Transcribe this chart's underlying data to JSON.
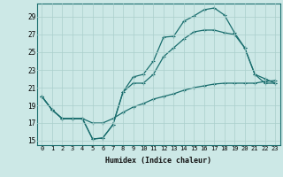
{
  "xlabel": "Humidex (Indice chaleur)",
  "bg_color": "#cce8e6",
  "grid_color": "#aacfcc",
  "line_color": "#1a6e6e",
  "xlim": [
    -0.5,
    23.5
  ],
  "ylim": [
    14.5,
    30.5
  ],
  "xticks": [
    0,
    1,
    2,
    3,
    4,
    5,
    6,
    7,
    8,
    9,
    10,
    11,
    12,
    13,
    14,
    15,
    16,
    17,
    18,
    19,
    20,
    21,
    22,
    23
  ],
  "yticks": [
    15,
    17,
    19,
    21,
    23,
    25,
    27,
    29
  ],
  "line1_x": [
    0,
    1,
    2,
    3,
    4,
    5,
    6,
    7,
    8,
    9,
    10,
    11,
    12,
    13,
    14,
    15,
    16,
    17,
    18,
    19,
    20,
    21,
    22,
    23
  ],
  "line1_y": [
    20.0,
    18.5,
    17.5,
    17.5,
    17.5,
    15.2,
    15.3,
    16.8,
    20.5,
    22.2,
    22.5,
    24.0,
    26.7,
    26.8,
    28.5,
    29.1,
    29.8,
    30.0,
    29.2,
    27.2,
    25.5,
    22.5,
    21.5,
    21.5
  ],
  "line2_x": [
    0,
    1,
    2,
    3,
    4,
    5,
    6,
    7,
    8,
    9,
    10,
    11,
    12,
    13,
    14,
    15,
    16,
    17,
    18,
    19,
    20,
    21,
    22,
    23
  ],
  "line2_y": [
    20.0,
    18.5,
    17.5,
    17.5,
    17.5,
    15.2,
    15.3,
    16.8,
    20.5,
    21.5,
    21.5,
    22.5,
    24.5,
    25.5,
    26.5,
    27.3,
    27.5,
    27.5,
    27.2,
    27.0,
    25.5,
    22.5,
    22.0,
    21.5
  ],
  "line3_x": [
    0,
    1,
    2,
    3,
    4,
    5,
    6,
    7,
    8,
    9,
    10,
    11,
    12,
    13,
    14,
    15,
    16,
    17,
    18,
    19,
    20,
    21,
    22,
    23
  ],
  "line3_y": [
    20.0,
    18.5,
    17.5,
    17.5,
    17.5,
    17.0,
    17.0,
    17.5,
    18.2,
    18.8,
    19.2,
    19.7,
    20.0,
    20.3,
    20.7,
    21.0,
    21.2,
    21.4,
    21.5,
    21.5,
    21.5,
    21.5,
    21.7,
    21.8
  ]
}
